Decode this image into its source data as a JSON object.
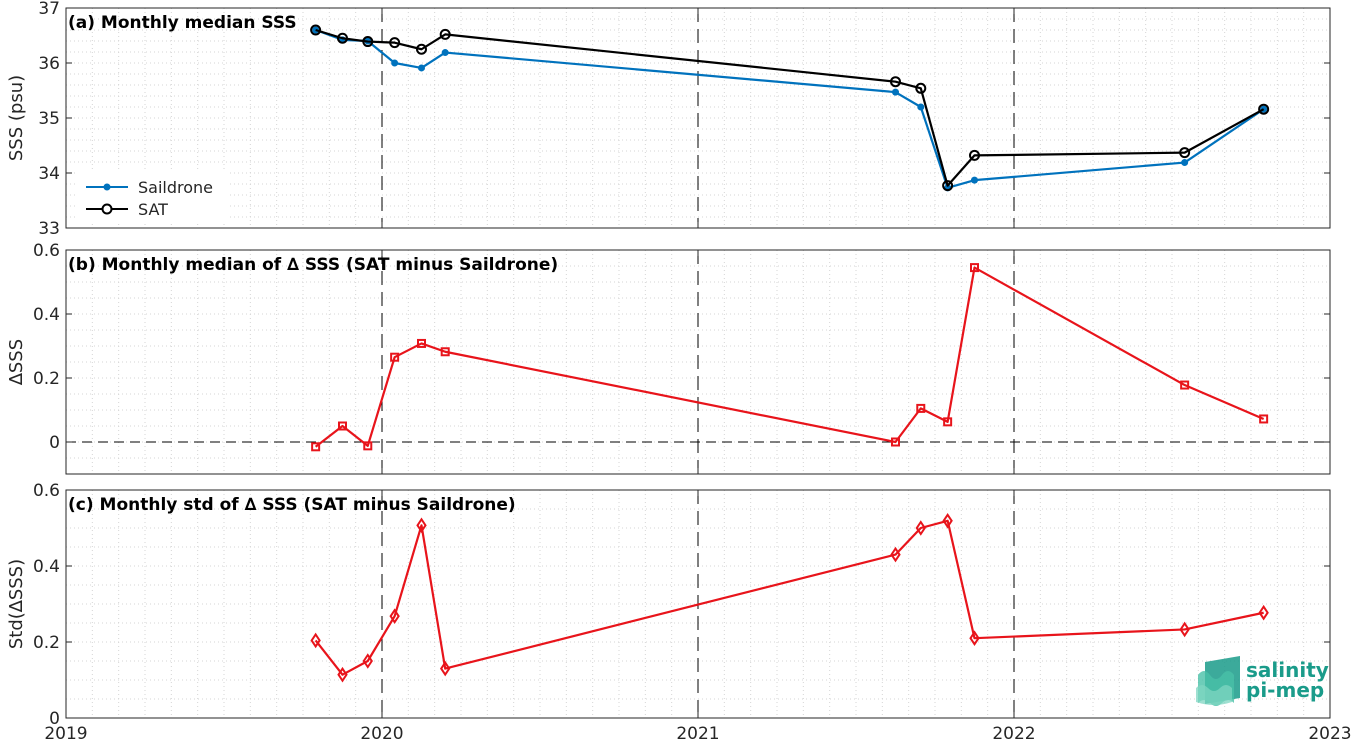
{
  "colors": {
    "saildrone": "#0072BD",
    "sat": "#000000",
    "delta": "#E8141B",
    "logo": "#1a9b8a"
  },
  "logo": {
    "line1": "salinity",
    "line2": "pi-mep"
  },
  "chart_data": [
    {
      "type": "line",
      "title": "(a) Monthly median SSS",
      "ylabel": "SSS (psu)",
      "xlim": [
        2019,
        2023
      ],
      "ylim": [
        33,
        37
      ],
      "yticks": [
        33,
        34,
        35,
        36,
        37
      ],
      "grid": true,
      "legend_position": "bottom-left",
      "x": [
        2019.79,
        2019.875,
        2019.955,
        2020.04,
        2020.125,
        2020.2,
        2021.625,
        2021.705,
        2021.79,
        2021.875,
        2022.54,
        2022.79
      ],
      "series": [
        {
          "name": "Saildrone",
          "marker": "dot",
          "values": [
            36.6,
            36.42,
            36.4,
            36.0,
            35.91,
            36.19,
            35.47,
            35.2,
            33.73,
            33.87,
            34.19,
            35.16
          ]
        },
        {
          "name": "SAT",
          "marker": "circle",
          "values": [
            36.6,
            36.45,
            36.39,
            36.37,
            36.25,
            36.52,
            35.66,
            35.54,
            33.77,
            34.32,
            34.37,
            35.16
          ]
        }
      ]
    },
    {
      "type": "line",
      "title": "(b) Monthly median of ∆ SSS (SAT minus Saildrone)",
      "ylabel": "∆SSS",
      "xlim": [
        2019,
        2023
      ],
      "ylim": [
        -0.1,
        0.6
      ],
      "yticks": [
        0,
        0.2,
        0.4,
        0.6
      ],
      "grid": true,
      "zero_line": true,
      "x": [
        2019.79,
        2019.875,
        2019.955,
        2020.04,
        2020.125,
        2020.2,
        2021.625,
        2021.705,
        2021.79,
        2021.875,
        2022.54,
        2022.79
      ],
      "series": [
        {
          "marker": "square",
          "values": [
            -0.015,
            0.05,
            -0.012,
            0.265,
            0.308,
            0.282,
            0.0,
            0.105,
            0.063,
            0.545,
            0.178,
            0.072
          ]
        }
      ]
    },
    {
      "type": "line",
      "title": "(c) Monthly std of ∆ SSS (SAT minus Saildrone)",
      "ylabel": "Std(∆SSS)",
      "xlim": [
        2019,
        2023
      ],
      "ylim": [
        0,
        0.6
      ],
      "yticks": [
        0,
        0.2,
        0.4,
        0.6
      ],
      "grid": true,
      "x": [
        2019.79,
        2019.875,
        2019.955,
        2020.04,
        2020.125,
        2020.2,
        2021.625,
        2021.705,
        2021.79,
        2021.875,
        2022.54,
        2022.79
      ],
      "series": [
        {
          "marker": "diamond",
          "values": [
            0.204,
            0.114,
            0.15,
            0.268,
            0.507,
            0.13,
            0.43,
            0.5,
            0.519,
            0.21,
            0.233,
            0.277
          ]
        }
      ]
    }
  ],
  "xticks": [
    "2019",
    "2020",
    "2021",
    "2022",
    "2023"
  ],
  "year_lines": [
    2020,
    2021,
    2022
  ]
}
